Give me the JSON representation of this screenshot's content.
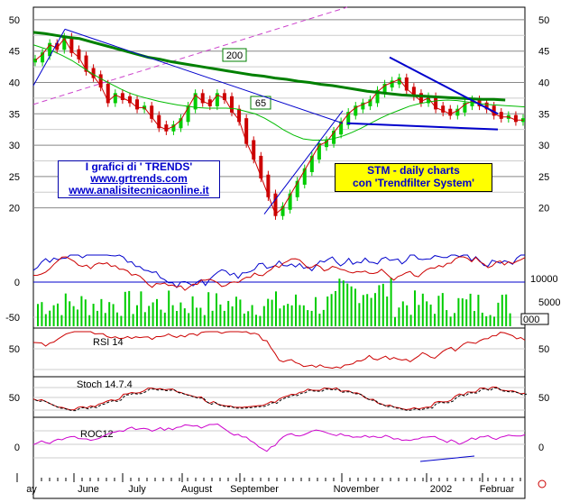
{
  "chart_data": {
    "type": "line",
    "x_months": [
      "ay",
      "June",
      "July",
      "August",
      "September",
      "November",
      "2002",
      "Februar"
    ],
    "price_panel": {
      "y_ticks": [
        20,
        25,
        30,
        35,
        40,
        45,
        50
      ],
      "ylim": [
        16.5,
        52
      ],
      "close": [
        43.5,
        44.5,
        46,
        45.5,
        47,
        45,
        44,
        42,
        41,
        39.5,
        37,
        38,
        37.5,
        37,
        36,
        36,
        34.5,
        33,
        32.5,
        33,
        34,
        36,
        38,
        37,
        36.5,
        38,
        37.5,
        35.5,
        34,
        30.5,
        28,
        25,
        22,
        19,
        20,
        22,
        24,
        26,
        28,
        30,
        30.5,
        32,
        33.5,
        35,
        36,
        36.5,
        37,
        38.5,
        39.5,
        40,
        40.5,
        39,
        38,
        37,
        37.5,
        36,
        35.5,
        35,
        35.5,
        36.5,
        37,
        36.5,
        36,
        35,
        34.5,
        34.5,
        34,
        34
      ],
      "ma65": [
        46,
        45.5,
        45,
        44.3,
        43.5,
        42.5,
        41.5,
        40.6,
        39.8,
        39,
        38.3,
        37.8,
        37.4,
        37,
        36.7,
        36.4,
        36.2,
        36,
        35.9,
        35.9,
        35.9,
        35.8,
        35.4,
        35,
        34.3,
        33.4,
        32.4,
        31.6,
        31,
        30.8,
        30.8,
        31,
        31.4,
        32,
        32.7,
        33.5,
        34.3,
        35,
        35.6,
        36.2,
        36.6,
        36.9,
        37.1,
        37.2,
        37.1,
        36.9,
        36.7,
        36.5,
        36.4,
        36.3,
        36.2,
        36.1
      ],
      "ma200": [
        48,
        47.8,
        47.5,
        47.2,
        47,
        46.5,
        46,
        45.5,
        45,
        44.5,
        44,
        43.7,
        43.3,
        43,
        42.7,
        42.4,
        42.1,
        41.8,
        41.5,
        41.2,
        41,
        40.7,
        40.5,
        40.2,
        40,
        39.7,
        39.5,
        39.2,
        38.9,
        38.6,
        38.4,
        38.2,
        38,
        37.9,
        37.8,
        37.7,
        37.6,
        37.5,
        37.4,
        37.3,
        37.3,
        37.2
      ],
      "labels": {
        "ma200": "200",
        "ma65": "65"
      }
    },
    "volume_panel": {
      "y_ticks_left": [
        0,
        -50
      ],
      "y_ticks_right": [
        10000,
        5000
      ],
      "extra_label": "000"
    },
    "rsi_panel": {
      "label": "RSI 14",
      "y_ticks": [
        50
      ],
      "ylim": [
        20,
        85
      ]
    },
    "stoch_panel": {
      "label": "Stoch 14.7.4",
      "y_ticks": [
        50
      ],
      "ylim": [
        0,
        100
      ]
    },
    "roc_panel": {
      "label": "ROC12",
      "y_ticks": [
        0
      ],
      "ylim": [
        -40,
        40
      ]
    }
  },
  "info_box": {
    "line1": "I grafici di ' TRENDS'",
    "line2": "www.grtrends.com",
    "line3": "www.analisitecnicaonline.it"
  },
  "stm_box": {
    "line1": "STM - daily charts",
    "line2": "con 'Trendfilter System'"
  },
  "colors": {
    "price_up": "#00cc00",
    "price_down": "#cc0000",
    "ma65": "#00bb00",
    "ma200": "#008000",
    "trend": "#0000cc",
    "rsi": "#cc0000",
    "roc": "#cc00cc",
    "volume": "#00cc00"
  }
}
